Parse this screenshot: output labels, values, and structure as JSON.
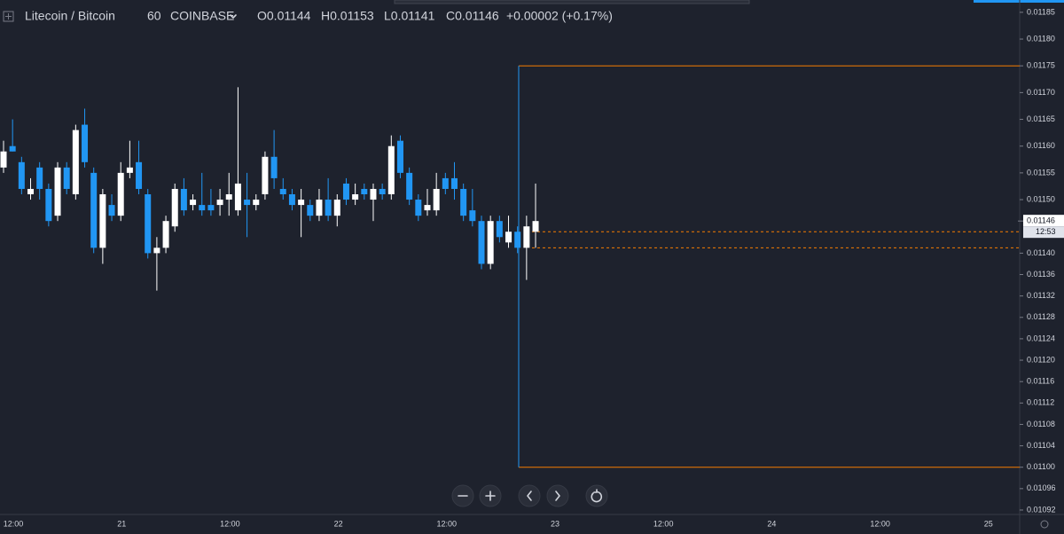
{
  "header": {
    "symbol": "Litecoin / Bitcoin",
    "interval": "60",
    "exchange": "COINBASE",
    "ohlc_legend": [
      "O0.01144",
      "H0.01153",
      "L0.01141",
      "C0.01146",
      "+0.00002 (+0.17%)"
    ]
  },
  "chart_data": {
    "type": "candlestick",
    "grid": false,
    "up_color": "#ffffff",
    "down_color": "#2196f3",
    "ylim": [
      0.010915,
      0.011873
    ],
    "yticks": [
      0.01185,
      {
        "value": 0.0118,
        "label": "0.01180"
      },
      0.01175,
      {
        "value": 0.0117,
        "label": "0.01170"
      },
      0.01165,
      {
        "value": 0.0116,
        "label": "0.01160"
      },
      0.01155,
      {
        "value": 0.0115,
        "label": "0.01150"
      },
      {
        "value": 0.0114,
        "label": "0.01140"
      },
      0.01136,
      0.01132,
      0.01128,
      0.01124,
      {
        "value": 0.0112,
        "label": "0.01120"
      },
      0.01116,
      0.01112,
      0.01108,
      0.01104,
      {
        "value": 0.011,
        "label": "0.01100"
      },
      0.01096,
      0.01092
    ],
    "x_labels": [
      "12:00",
      "21",
      "12:00",
      "22",
      "12:00",
      "23",
      "12:00",
      "24",
      "12:00",
      "25"
    ],
    "open": [
      0.01156,
      0.0116,
      0.01157,
      0.01151,
      0.01156,
      0.01152,
      0.01147,
      0.01156,
      0.01151,
      0.01164,
      0.01155,
      0.01141,
      0.01149,
      0.01147,
      0.01155,
      0.01157,
      0.01151,
      0.0114,
      0.01141,
      0.01145,
      0.01152,
      0.01149,
      0.01149,
      0.01149,
      0.01149,
      0.0115,
      0.01148,
      0.0115,
      0.01149,
      0.01151,
      0.01158,
      0.01152,
      0.01151,
      0.01149,
      0.01149,
      0.01147,
      0.0115,
      0.01147,
      0.01153,
      0.0115,
      0.01152,
      0.0115,
      0.01152,
      0.01151,
      0.01161,
      0.01155,
      0.0115,
      0.01148,
      0.01148,
      0.01154,
      0.01154,
      0.01152,
      0.01148,
      0.01146,
      0.01138,
      0.01146,
      0.01142,
      0.01144,
      0.01141,
      0.01144
    ],
    "high": [
      0.01161,
      0.01165,
      0.01158,
      0.01154,
      0.01157,
      0.01153,
      0.01157,
      0.01157,
      0.01164,
      0.01167,
      0.01156,
      0.01152,
      0.01151,
      0.01157,
      0.01161,
      0.01161,
      0.01152,
      0.01143,
      0.01147,
      0.01153,
      0.01154,
      0.01151,
      0.01155,
      0.01152,
      0.01152,
      0.01155,
      0.01171,
      0.01155,
      0.01151,
      0.01159,
      0.01163,
      0.01154,
      0.01152,
      0.01152,
      0.0115,
      0.01152,
      0.01154,
      0.01151,
      0.01154,
      0.01153,
      0.01153,
      0.01153,
      0.01153,
      0.01162,
      0.01162,
      0.01156,
      0.01151,
      0.01152,
      0.01155,
      0.01155,
      0.01157,
      0.01153,
      0.01152,
      0.01147,
      0.01147,
      0.01147,
      0.01147,
      0.01145,
      0.01147,
      0.01153
    ],
    "low": [
      0.01155,
      0.01159,
      0.01151,
      0.0115,
      0.0115,
      0.01145,
      0.01146,
      0.01151,
      0.0115,
      0.01156,
      0.0114,
      0.01138,
      0.01146,
      0.01146,
      0.01154,
      0.01151,
      0.01139,
      0.01133,
      0.0114,
      0.01144,
      0.01147,
      0.01148,
      0.01147,
      0.01147,
      0.01147,
      0.01147,
      0.01147,
      0.01143,
      0.01148,
      0.0115,
      0.01152,
      0.0115,
      0.01148,
      0.01143,
      0.01146,
      0.01146,
      0.01146,
      0.01145,
      0.01149,
      0.01149,
      0.0115,
      0.01146,
      0.0115,
      0.0115,
      0.01154,
      0.01149,
      0.01146,
      0.01147,
      0.01147,
      0.01151,
      0.0115,
      0.01146,
      0.01145,
      0.01137,
      0.01137,
      0.01142,
      0.01141,
      0.0114,
      0.01135,
      0.01141
    ],
    "close": [
      0.01159,
      0.01159,
      0.01152,
      0.01152,
      0.01152,
      0.01146,
      0.01156,
      0.01152,
      0.01163,
      0.01157,
      0.01141,
      0.01151,
      0.01147,
      0.01155,
      0.01156,
      0.01152,
      0.0114,
      0.01141,
      0.01146,
      0.01152,
      0.01148,
      0.0115,
      0.01148,
      0.01148,
      0.0115,
      0.01151,
      0.01153,
      0.01149,
      0.0115,
      0.01158,
      0.01154,
      0.01151,
      0.01149,
      0.0115,
      0.01147,
      0.0115,
      0.01147,
      0.0115,
      0.0115,
      0.01151,
      0.01151,
      0.01152,
      0.01151,
      0.0116,
      0.01155,
      0.0115,
      0.01147,
      0.01149,
      0.01152,
      0.01152,
      0.01152,
      0.01147,
      0.01146,
      0.01138,
      0.01146,
      0.01143,
      0.01144,
      0.01141,
      0.01145,
      0.01146
    ],
    "last_price": 0.01146,
    "countdown": "12:53",
    "drawing": {
      "top": 0.01175,
      "bottom": 0.011,
      "color": "#f57c00",
      "edge_color": "#2196f3"
    },
    "dashed_levels": [
      0.01144,
      0.01141
    ]
  }
}
